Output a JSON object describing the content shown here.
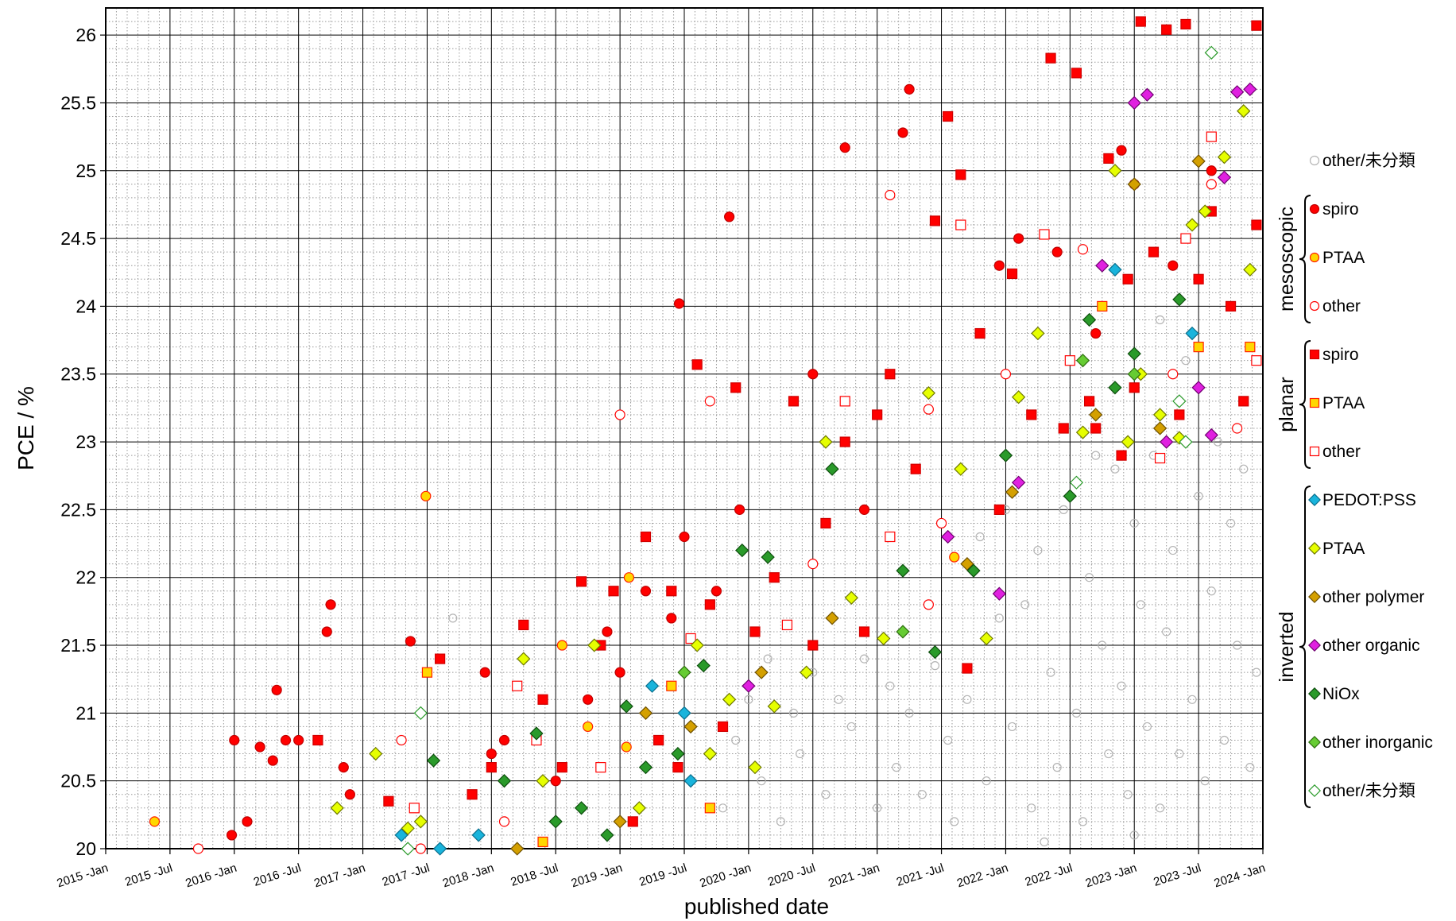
{
  "chart_data": {
    "type": "scatter",
    "xlabel": "published date",
    "ylabel": "PCE / %",
    "xlim": [
      2015,
      2024
    ],
    "ylim": [
      20,
      26.2
    ],
    "grid": true,
    "legend": "right",
    "xticks": [
      {
        "value": 2015,
        "label": "2015 -Jan"
      },
      {
        "value": 2015.5,
        "label": "2015 -Jul"
      },
      {
        "value": 2016,
        "label": "2016 -Jan"
      },
      {
        "value": 2016.5,
        "label": "2016 -Jul"
      },
      {
        "value": 2017,
        "label": "2017 -Jan"
      },
      {
        "value": 2017.5,
        "label": "2017 -Jul"
      },
      {
        "value": 2018,
        "label": "2018 -Jan"
      },
      {
        "value": 2018.5,
        "label": "2018 -Jul"
      },
      {
        "value": 2019,
        "label": "2019 -Jan"
      },
      {
        "value": 2019.5,
        "label": "2019 -Jul"
      },
      {
        "value": 2020,
        "label": "2020 -Jan"
      },
      {
        "value": 2020.5,
        "label": "2020 -Jul"
      },
      {
        "value": 2021,
        "label": "2021 -Jan"
      },
      {
        "value": 2021.5,
        "label": "2021 -Jul"
      },
      {
        "value": 2022,
        "label": "2022 -Jan"
      },
      {
        "value": 2022.5,
        "label": "2022 -Jul"
      },
      {
        "value": 2023,
        "label": "2023 -Jan"
      },
      {
        "value": 2023.5,
        "label": "2023 -Jul"
      },
      {
        "value": 2024,
        "label": "2024 -Jan"
      }
    ],
    "yticks": [
      20,
      20.5,
      21,
      21.5,
      22,
      22.5,
      23,
      23.5,
      24,
      24.5,
      25,
      25.5,
      26
    ],
    "xminorticks": [
      2015.083,
      2015.167,
      2015.25,
      2015.333,
      2015.417,
      2015.583,
      2015.667,
      2015.75,
      2015.833,
      2015.917,
      2016.083,
      2016.167,
      2016.25,
      2016.333,
      2016.417,
      2016.583,
      2016.667,
      2016.75,
      2016.833,
      2016.917,
      2017.083,
      2017.167,
      2017.25,
      2017.333,
      2017.417,
      2017.583,
      2017.667,
      2017.75,
      2017.833,
      2017.917,
      2018.083,
      2018.167,
      2018.25,
      2018.333,
      2018.417,
      2018.583,
      2018.667,
      2018.75,
      2018.833,
      2018.917,
      2019.083,
      2019.167,
      2019.25,
      2019.333,
      2019.417,
      2019.583,
      2019.667,
      2019.75,
      2019.833,
      2019.917,
      2020.083,
      2020.167,
      2020.25,
      2020.333,
      2020.417,
      2020.583,
      2020.667,
      2020.75,
      2020.833,
      2020.917,
      2021.083,
      2021.167,
      2021.25,
      2021.333,
      2021.417,
      2021.583,
      2021.667,
      2021.75,
      2021.833,
      2021.917,
      2022.083,
      2022.167,
      2022.25,
      2022.333,
      2022.417,
      2022.583,
      2022.667,
      2022.75,
      2022.833,
      2022.917,
      2023.083,
      2023.167,
      2023.25,
      2023.333,
      2023.417,
      2023.583,
      2023.667,
      2023.75,
      2023.833,
      2023.917
    ],
    "yminorticks": [
      20.1,
      20.2,
      20.3,
      20.4,
      20.6,
      20.7,
      20.8,
      20.9,
      21.1,
      21.2,
      21.3,
      21.4,
      21.6,
      21.7,
      21.8,
      21.9,
      22.1,
      22.2,
      22.3,
      22.4,
      22.6,
      22.7,
      22.8,
      22.9,
      23.1,
      23.2,
      23.3,
      23.4,
      23.6,
      23.7,
      23.8,
      23.9,
      24.1,
      24.2,
      24.3,
      24.4,
      24.6,
      24.7,
      24.8,
      24.9,
      25.1,
      25.2,
      25.3,
      25.4,
      25.6,
      25.7,
      25.8,
      25.9,
      26.1
    ],
    "series": [
      {
        "name": "other/未分類",
        "marker": "circle",
        "fill": "none",
        "edge": "#b4b4b4",
        "x": [
          2019.8,
          2019.9,
          2020.0,
          2020.1,
          2020.15,
          2020.25,
          2020.35,
          2020.4,
          2020.5,
          2020.6,
          2020.7,
          2020.8,
          2020.9,
          2021.0,
          2021.1,
          2021.15,
          2021.25,
          2021.35,
          2021.45,
          2021.55,
          2021.6,
          2021.7,
          2021.8,
          2021.85,
          2021.95,
          2022.0,
          2022.05,
          2022.15,
          2022.2,
          2022.25,
          2022.35,
          2022.4,
          2022.45,
          2022.55,
          2022.6,
          2022.65,
          2022.75,
          2022.8,
          2022.85,
          2022.9,
          2022.95,
          2023.0,
          2023.05,
          2023.1,
          2023.15,
          2023.2,
          2023.25,
          2023.3,
          2023.35,
          2023.4,
          2023.45,
          2023.5,
          2023.55,
          2023.6,
          2023.65,
          2023.7,
          2023.75,
          2023.8,
          2023.85,
          2023.9,
          2023.95,
          2017.7,
          2022.7,
          2023.2,
          2022.3,
          2023.0
        ],
        "values": [
          20.3,
          20.8,
          21.1,
          20.5,
          21.4,
          20.2,
          21.0,
          20.7,
          21.3,
          20.4,
          21.1,
          20.9,
          21.4,
          20.3,
          21.2,
          20.6,
          21.0,
          20.4,
          21.35,
          20.8,
          20.2,
          21.1,
          22.3,
          20.5,
          21.7,
          22.5,
          20.9,
          21.8,
          20.3,
          22.2,
          21.3,
          20.6,
          22.5,
          21.0,
          20.2,
          22.0,
          21.5,
          20.7,
          22.8,
          21.2,
          20.4,
          22.4,
          21.8,
          20.9,
          22.9,
          20.3,
          21.6,
          22.2,
          20.7,
          23.6,
          21.1,
          22.6,
          20.5,
          21.9,
          23.0,
          20.8,
          22.4,
          21.5,
          22.8,
          20.6,
          21.3,
          21.7,
          22.9,
          23.9,
          20.05,
          20.1
        ]
      }
    ],
    "groups": [
      {
        "label": "mesoscopic",
        "series": [
          {
            "name": "spiro",
            "marker": "circle",
            "fill": "#ff0000",
            "edge": "#c00000",
            "x": [
              2015.98,
              2016.1,
              2016.0,
              2016.2,
              2016.3,
              2016.33,
              2016.4,
              2016.5,
              2016.85,
              2016.9,
              2016.72,
              2016.75,
              2017.95,
              2018.0,
              2018.1,
              2017.37,
              2018.5,
              2018.75,
              2018.9,
              2019.0,
              2019.2,
              2019.4,
              2019.5,
              2019.75,
              2019.46,
              2019.93,
              2019.85,
              2020.5,
              2020.9,
              2020.75,
              2021.2,
              2021.25,
              2021.95,
              2022.1,
              2022.4,
              2022.7,
              2022.9,
              2023.0,
              2023.3,
              2023.6
            ],
            "values": [
              20.1,
              20.2,
              20.8,
              20.75,
              20.65,
              21.17,
              20.8,
              20.8,
              20.6,
              20.4,
              21.6,
              21.8,
              21.3,
              20.7,
              20.8,
              21.53,
              20.5,
              21.1,
              21.6,
              21.3,
              21.9,
              21.7,
              22.3,
              21.9,
              24.02,
              22.5,
              24.66,
              23.5,
              22.5,
              25.17,
              25.28,
              25.6,
              24.3,
              24.5,
              24.4,
              23.8,
              25.15,
              24.9,
              24.3,
              25.0
            ]
          },
          {
            "name": "PTAA",
            "marker": "circle",
            "fill": "#ffd700",
            "edge": "#ff2000",
            "x": [
              2015.38,
              2017.49,
              2018.55,
              2018.75,
              2019.07,
              2019.05,
              2021.6
            ],
            "values": [
              20.2,
              22.6,
              21.5,
              20.9,
              22.0,
              20.75,
              22.15
            ]
          },
          {
            "name": "other",
            "marker": "circle",
            "fill": "#ffffff",
            "edge": "#ff0000",
            "x": [
              2015.72,
              2017.45,
              2017.3,
              2018.1,
              2019.0,
              2019.7,
              2020.5,
              2021.1,
              2021.4,
              2021.5,
              2021.4,
              2022.0,
              2022.6,
              2023.6,
              2023.3,
              2023.8
            ],
            "values": [
              20.0,
              20.0,
              20.8,
              20.2,
              23.2,
              23.3,
              22.1,
              24.82,
              23.24,
              22.4,
              21.8,
              23.5,
              24.42,
              24.9,
              23.5,
              23.1
            ]
          }
        ]
      },
      {
        "label": "planar",
        "series": [
          {
            "name": "spiro",
            "marker": "square",
            "fill": "#ff0000",
            "edge": "#d00000",
            "x": [
              2016.65,
              2017.2,
              2017.6,
              2017.85,
              2018.0,
              2018.25,
              2018.4,
              2018.55,
              2018.7,
              2018.85,
              2018.95,
              2019.1,
              2019.2,
              2019.3,
              2019.4,
              2019.45,
              2019.6,
              2019.7,
              2019.8,
              2019.9,
              2020.05,
              2020.2,
              2020.35,
              2020.5,
              2020.6,
              2020.75,
              2020.9,
              2021.0,
              2021.1,
              2021.3,
              2021.45,
              2021.55,
              2021.65,
              2021.7,
              2021.8,
              2021.95,
              2022.05,
              2022.2,
              2022.35,
              2022.45,
              2022.55,
              2022.65,
              2022.8,
              2022.95,
              2023.0,
              2023.05,
              2023.15,
              2023.25,
              2023.35,
              2023.4,
              2023.5,
              2023.6,
              2023.75,
              2023.85,
              2023.95,
              2023.95,
              2022.9,
              2022.7
            ],
            "values": [
              20.8,
              20.35,
              21.4,
              20.4,
              20.6,
              21.65,
              21.1,
              20.6,
              21.97,
              21.5,
              21.9,
              20.2,
              22.3,
              20.8,
              21.9,
              20.6,
              23.57,
              21.8,
              20.9,
              23.4,
              21.6,
              22.0,
              23.3,
              21.5,
              22.4,
              23.0,
              21.6,
              23.2,
              23.5,
              22.8,
              24.63,
              25.4,
              24.97,
              21.33,
              23.8,
              22.5,
              24.24,
              23.2,
              25.83,
              23.1,
              25.72,
              23.3,
              25.09,
              24.2,
              23.4,
              26.1,
              24.4,
              26.04,
              23.2,
              26.08,
              24.2,
              24.7,
              24.0,
              23.3,
              26.07,
              24.6,
              22.9,
              23.1
            ]
          },
          {
            "name": "PTAA",
            "marker": "square",
            "fill": "#ffd700",
            "edge": "#ff2000",
            "x": [
              2017.5,
              2018.4,
              2019.4,
              2019.7,
              2022.75,
              2023.5,
              2023.9
            ],
            "values": [
              21.3,
              20.05,
              21.2,
              20.3,
              24.0,
              23.7,
              23.7
            ]
          },
          {
            "name": "other",
            "marker": "square",
            "fill": "#ffffff",
            "edge": "#ff0000",
            "x": [
              2017.4,
              2018.2,
              2018.35,
              2018.85,
              2019.55,
              2020.3,
              2020.75,
              2021.1,
              2021.65,
              2022.3,
              2022.5,
              2023.2,
              2023.6,
              2023.95,
              2023.4
            ],
            "values": [
              20.3,
              21.2,
              20.8,
              20.6,
              21.55,
              21.65,
              23.3,
              22.3,
              24.6,
              24.53,
              23.6,
              22.88,
              25.25,
              23.6,
              24.5
            ]
          }
        ]
      },
      {
        "label": "inverted",
        "series": [
          {
            "name": "PEDOT:PSS",
            "marker": "diamond",
            "fill": "#19b4dc",
            "edge": "#0a6e8c",
            "x": [
              2017.3,
              2017.6,
              2017.9,
              2019.25,
              2019.5,
              2019.55,
              2022.85,
              2023.45
            ],
            "values": [
              20.1,
              20.0,
              20.1,
              21.2,
              21.0,
              20.5,
              24.27,
              23.8
            ]
          },
          {
            "name": "PTAA",
            "marker": "diamond",
            "fill": "#e6ff00",
            "edge": "#6e7800",
            "x": [
              2016.8,
              2017.1,
              2017.35,
              2017.45,
              2018.25,
              2018.4,
              2018.8,
              2019.15,
              2019.6,
              2019.7,
              2019.85,
              2020.05,
              2020.2,
              2020.45,
              2020.6,
              2020.8,
              2021.05,
              2021.4,
              2021.65,
              2021.85,
              2022.1,
              2022.25,
              2022.6,
              2022.85,
              2022.95,
              2023.2,
              2023.45,
              2023.55,
              2023.7,
              2023.85,
              2023.9,
              2023.35,
              2023.05
            ],
            "values": [
              20.3,
              20.7,
              20.15,
              20.2,
              21.4,
              20.5,
              21.5,
              20.3,
              21.5,
              20.7,
              21.1,
              20.6,
              21.05,
              21.3,
              23.0,
              21.85,
              21.55,
              23.36,
              22.8,
              21.55,
              23.33,
              23.8,
              23.07,
              25.0,
              23.0,
              23.2,
              24.6,
              24.7,
              25.1,
              25.44,
              24.27,
              23.03,
              23.5
            ]
          },
          {
            "name": "other polymer",
            "marker": "diamond",
            "fill": "#d4a000",
            "edge": "#6e5000",
            "x": [
              2018.2,
              2019.0,
              2019.2,
              2019.55,
              2020.1,
              2020.65,
              2021.7,
              2022.05,
              2023.0,
              2023.5,
              2023.2,
              2022.7
            ],
            "values": [
              20.0,
              20.2,
              21.0,
              20.9,
              21.3,
              21.7,
              22.1,
              22.63,
              24.9,
              25.07,
              23.1,
              23.2
            ]
          },
          {
            "name": "other organic",
            "marker": "diamond",
            "fill": "#e020e0",
            "edge": "#700070",
            "x": [
              2020.0,
              2021.55,
              2021.95,
              2022.1,
              2022.75,
              2023.0,
              2023.1,
              2023.7,
              2023.8,
              2023.9,
              2023.5,
              2023.25,
              2023.6
            ],
            "values": [
              21.2,
              22.3,
              21.88,
              22.7,
              24.3,
              25.5,
              25.56,
              24.95,
              25.58,
              25.6,
              23.4,
              23.0,
              23.05
            ]
          },
          {
            "name": "NiOx",
            "marker": "diamond",
            "fill": "#2a9a2a",
            "edge": "#0e4e0e",
            "x": [
              2017.55,
              2018.1,
              2018.35,
              2018.5,
              2018.7,
              2018.9,
              2019.05,
              2019.2,
              2019.45,
              2019.65,
              2019.95,
              2020.15,
              2020.65,
              2021.2,
              2021.45,
              2021.75,
              2022.0,
              2022.5,
              2022.65,
              2022.85,
              2023.35,
              2023.0
            ],
            "values": [
              20.65,
              20.5,
              20.85,
              20.2,
              20.3,
              20.1,
              21.05,
              20.6,
              20.7,
              21.35,
              22.2,
              22.15,
              22.8,
              22.05,
              21.45,
              22.05,
              22.9,
              22.6,
              23.9,
              23.4,
              24.05,
              23.65
            ]
          },
          {
            "name": "other inorganic",
            "marker": "diamond",
            "fill": "#66cc33",
            "edge": "#2e6e10",
            "x": [
              2019.5,
              2021.2,
              2022.6,
              2023.0
            ],
            "values": [
              21.3,
              21.6,
              23.6,
              23.5
            ]
          },
          {
            "name": "other/未分類",
            "marker": "diamond",
            "fill": "#ffffff",
            "edge": "#2a9a2a",
            "x": [
              2017.45,
              2017.35,
              2022.55,
              2023.6,
              2023.35,
              2023.4
            ],
            "values": [
              21.0,
              20.0,
              22.7,
              25.87,
              23.3,
              23.0
            ]
          }
        ]
      }
    ]
  }
}
